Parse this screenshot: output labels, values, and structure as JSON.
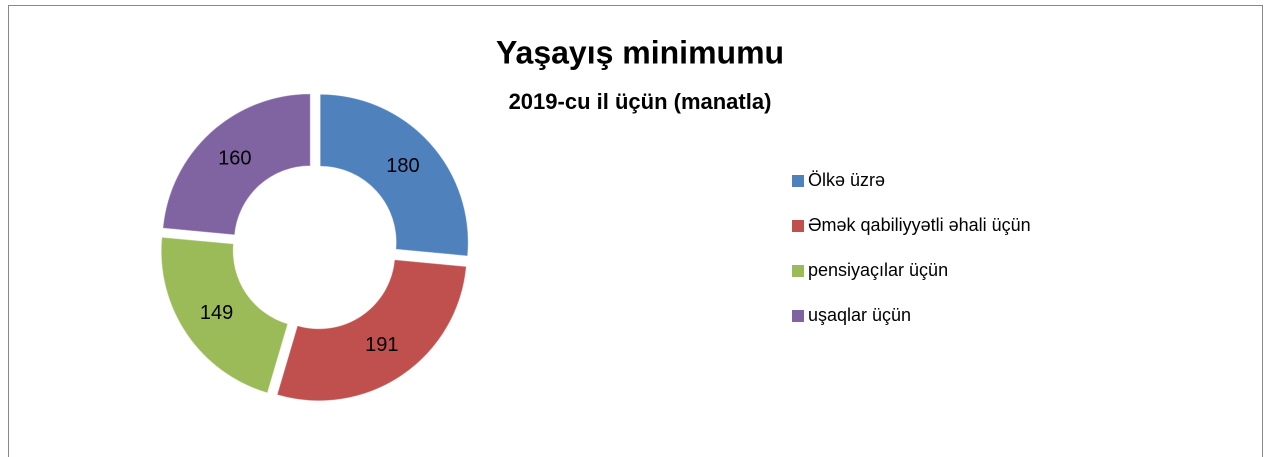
{
  "chart_data": {
    "type": "donut",
    "title": "Yaşayış minimumu",
    "subtitle": "2019-cu il üçün (manatla)",
    "categories": [
      "Ölkə üzrə",
      "Əmək qabiliyyətli əhali üçün",
      "pensiyaçılar üçün",
      "uşaqlar üçün"
    ],
    "values": [
      180,
      191,
      149,
      160
    ],
    "colors": [
      "#4f81bd",
      "#c0504d",
      "#9bbb59",
      "#8064a2"
    ],
    "legend": "right"
  }
}
